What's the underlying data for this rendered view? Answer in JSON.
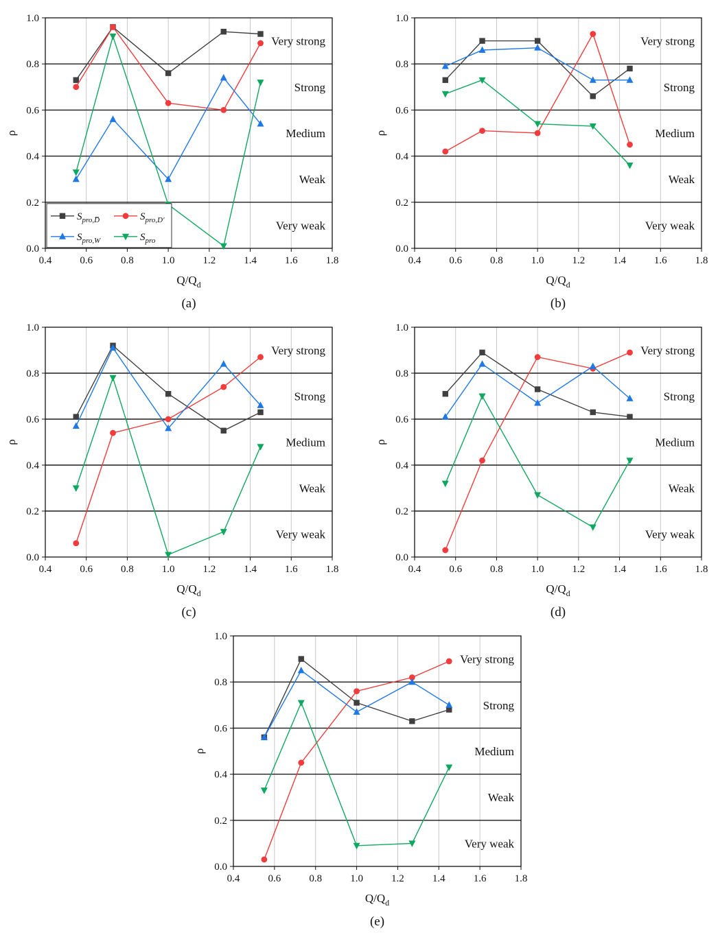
{
  "figure": {
    "legend": {
      "entries": [
        {
          "series_index": 0,
          "base": "S",
          "sub": "pro,D̅"
        },
        {
          "series_index": 1,
          "base": "S",
          "sub": "pro,D′"
        },
        {
          "series_index": 2,
          "base": "S",
          "sub": "pro,W"
        },
        {
          "series_index": 3,
          "base": "S",
          "sub": "pro"
        }
      ]
    }
  },
  "styles": {
    "series_colors": [
      "#404040",
      "#f03c3c",
      "#1e78e6",
      "#10a860"
    ],
    "series_markers": [
      "square",
      "circle",
      "triangle-up",
      "triangle-down"
    ],
    "band_line_color": "#1a1a1a",
    "grid_color": "#c8c8c8"
  },
  "chart_data": [
    {
      "type": "line",
      "caption": "(a)",
      "xlabel": "Q/Q",
      "xlabel_sub": "d",
      "ylabel": "ρ",
      "xlim": [
        0.4,
        1.8
      ],
      "ylim": [
        0.0,
        1.0
      ],
      "xticks": [
        "0.4",
        "0.6",
        "0.8",
        "1.0",
        "1.2",
        "1.4",
        "1.6",
        "1.8"
      ],
      "yticks": [
        "0.0",
        "0.2",
        "0.4",
        "0.6",
        "0.8",
        "1.0"
      ],
      "x": [
        0.55,
        0.73,
        1.0,
        1.27,
        1.45
      ],
      "bands": [
        "Very weak",
        "Weak",
        "Medium",
        "Strong",
        "Very strong"
      ],
      "grid": "vertical",
      "legend": "lower-left",
      "series": [
        {
          "values": [
            0.73,
            0.96,
            0.76,
            0.94,
            0.93
          ]
        },
        {
          "values": [
            0.7,
            0.96,
            0.63,
            0.6,
            0.89
          ]
        },
        {
          "values": [
            0.3,
            0.56,
            0.3,
            0.74,
            0.54
          ]
        },
        {
          "values": [
            0.33,
            0.92,
            0.19,
            0.01,
            0.72
          ]
        }
      ]
    },
    {
      "type": "line",
      "caption": "(b)",
      "xlabel": "Q/Q",
      "xlabel_sub": "d",
      "ylabel": "ρ",
      "xlim": [
        0.4,
        1.8
      ],
      "ylim": [
        0.0,
        1.0
      ],
      "xticks": [
        "0.4",
        "0.6",
        "0.8",
        "1.0",
        "1.2",
        "1.4",
        "1.6",
        "1.8"
      ],
      "yticks": [
        "0.0",
        "0.2",
        "0.4",
        "0.6",
        "0.8",
        "1.0"
      ],
      "x": [
        0.55,
        0.73,
        1.0,
        1.27,
        1.45
      ],
      "bands": [
        "Very weak",
        "Weak",
        "Medium",
        "Strong",
        "Very strong"
      ],
      "grid": "vertical",
      "series": [
        {
          "values": [
            0.73,
            0.9,
            0.9,
            0.66,
            0.78
          ]
        },
        {
          "values": [
            0.42,
            0.51,
            0.5,
            0.93,
            0.45
          ]
        },
        {
          "values": [
            0.79,
            0.86,
            0.87,
            0.73,
            0.73
          ]
        },
        {
          "values": [
            0.67,
            0.73,
            0.54,
            0.53,
            0.36
          ]
        }
      ]
    },
    {
      "type": "line",
      "caption": "(c)",
      "xlabel": "Q/Q",
      "xlabel_sub": "d",
      "ylabel": "ρ",
      "xlim": [
        0.4,
        1.8
      ],
      "ylim": [
        0.0,
        1.0
      ],
      "xticks": [
        "0.4",
        "0.6",
        "0.8",
        "1.0",
        "1.2",
        "1.4",
        "1.6",
        "1.8"
      ],
      "yticks": [
        "0.0",
        "0.2",
        "0.4",
        "0.6",
        "0.8",
        "1.0"
      ],
      "x": [
        0.55,
        0.73,
        1.0,
        1.27,
        1.45
      ],
      "bands": [
        "Very weak",
        "Weak",
        "Medium",
        "Strong",
        "Very strong"
      ],
      "grid": "vertical",
      "series": [
        {
          "values": [
            0.61,
            0.92,
            0.71,
            0.55,
            0.63
          ]
        },
        {
          "values": [
            0.06,
            0.54,
            0.6,
            0.74,
            0.87
          ]
        },
        {
          "values": [
            0.57,
            0.91,
            0.56,
            0.84,
            0.66
          ]
        },
        {
          "values": [
            0.3,
            0.78,
            0.01,
            0.11,
            0.48
          ]
        }
      ]
    },
    {
      "type": "line",
      "caption": "(d)",
      "xlabel": "Q/Q",
      "xlabel_sub": "d",
      "ylabel": "ρ",
      "xlim": [
        0.4,
        1.8
      ],
      "ylim": [
        0.0,
        1.0
      ],
      "xticks": [
        "0.4",
        "0.6",
        "0.8",
        "1.0",
        "1.2",
        "1.4",
        "1.6",
        "1.8"
      ],
      "yticks": [
        "0.0",
        "0.2",
        "0.4",
        "0.6",
        "0.8",
        "1.0"
      ],
      "x": [
        0.55,
        0.73,
        1.0,
        1.27,
        1.45
      ],
      "bands": [
        "Very weak",
        "Weak",
        "Medium",
        "Strong",
        "Very strong"
      ],
      "grid": "vertical",
      "series": [
        {
          "values": [
            0.71,
            0.89,
            0.73,
            0.63,
            0.61
          ]
        },
        {
          "values": [
            0.03,
            0.42,
            0.87,
            0.82,
            0.89
          ]
        },
        {
          "values": [
            0.61,
            0.84,
            0.67,
            0.83,
            0.69
          ]
        },
        {
          "values": [
            0.32,
            0.7,
            0.27,
            0.13,
            0.42
          ]
        }
      ]
    },
    {
      "type": "line",
      "caption": "(e)",
      "xlabel": "Q/Q",
      "xlabel_sub": "d",
      "ylabel": "ρ",
      "xlim": [
        0.4,
        1.8
      ],
      "ylim": [
        0.0,
        1.0
      ],
      "xticks": [
        "0.4",
        "0.6",
        "0.8",
        "1.0",
        "1.2",
        "1.4",
        "1.6",
        "1.8"
      ],
      "yticks": [
        "0.0",
        "0.2",
        "0.4",
        "0.6",
        "0.8",
        "1.0"
      ],
      "x": [
        0.55,
        0.73,
        1.0,
        1.27,
        1.45
      ],
      "bands": [
        "Very weak",
        "Weak",
        "Medium",
        "Strong",
        "Very strong"
      ],
      "grid": "vertical",
      "series": [
        {
          "values": [
            0.56,
            0.9,
            0.71,
            0.63,
            0.68
          ]
        },
        {
          "values": [
            0.03,
            0.45,
            0.76,
            0.82,
            0.89
          ]
        },
        {
          "values": [
            0.56,
            0.85,
            0.67,
            0.8,
            0.7
          ]
        },
        {
          "values": [
            0.33,
            0.71,
            0.09,
            0.1,
            0.43
          ]
        }
      ]
    }
  ]
}
